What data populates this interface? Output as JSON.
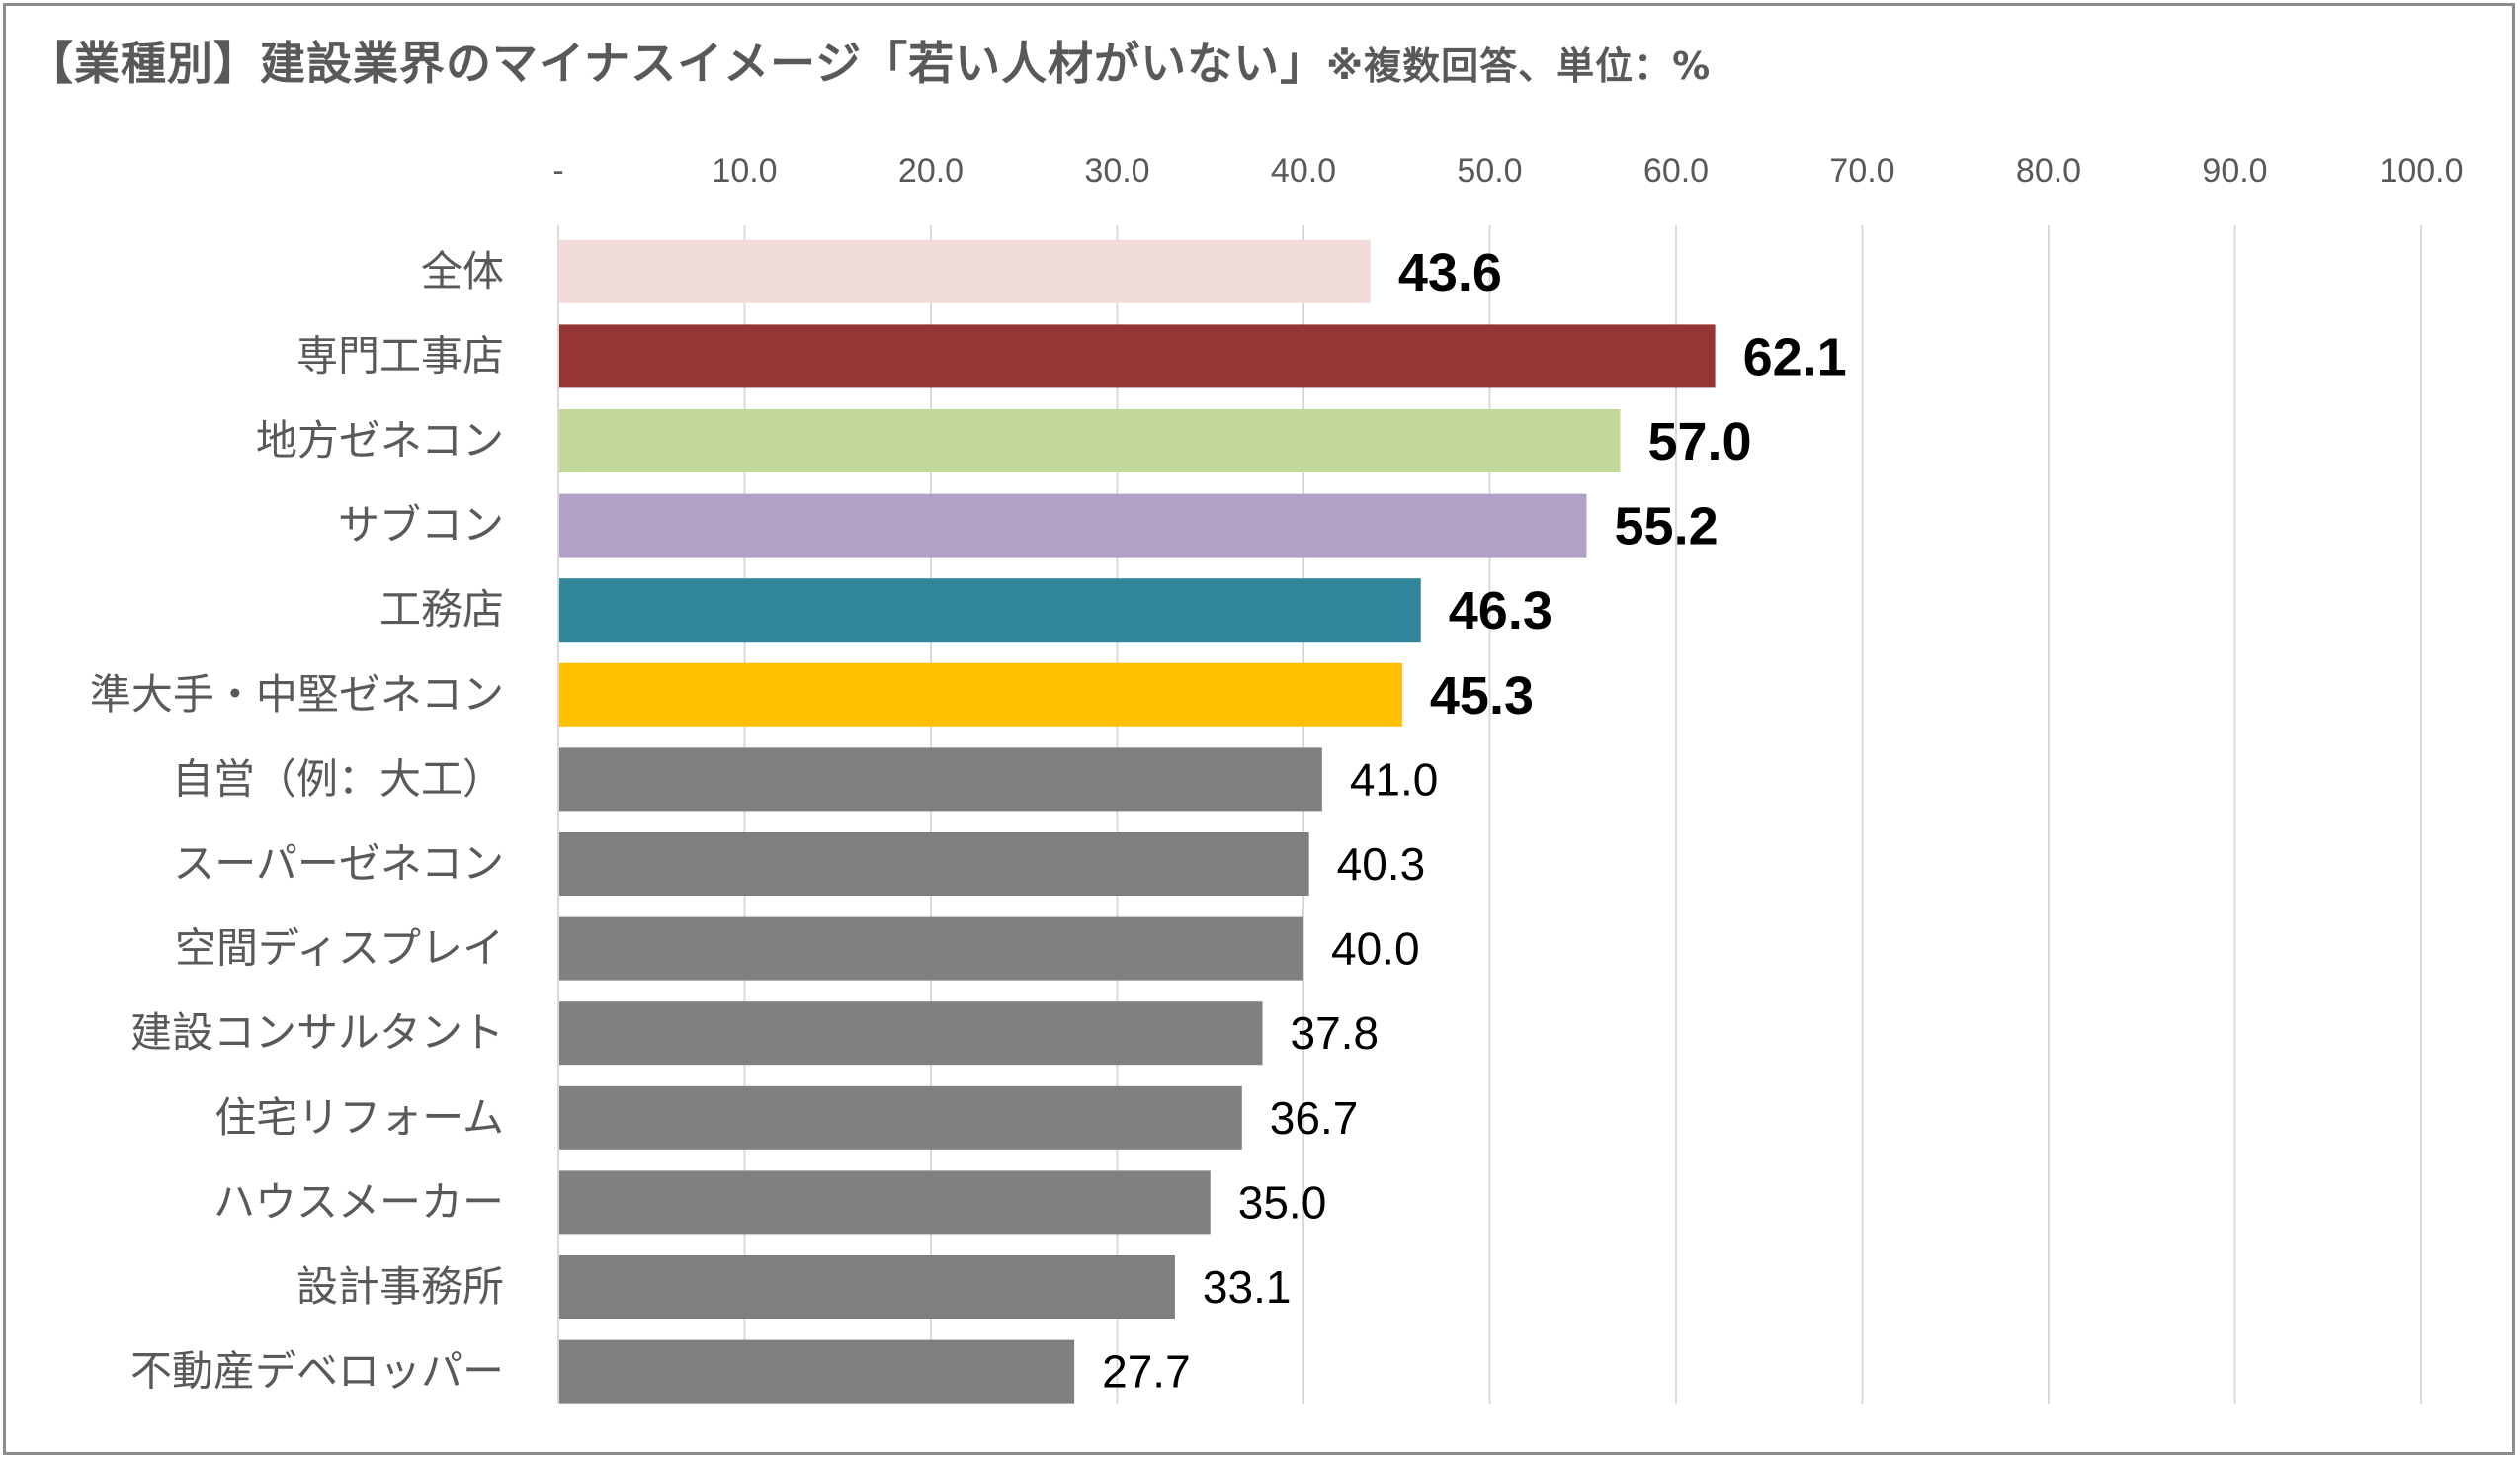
{
  "chart_data": {
    "type": "bar",
    "orientation": "horizontal",
    "title": "【業種別】建設業界のマイナスイメージ「若い人材がいない」",
    "subtitle": "※複数回答、単位：%",
    "categories": [
      "全体",
      "専門工事店",
      "地方ゼネコン",
      "サブコン",
      "工務店",
      "準大手・中堅ゼネコン",
      "自営（例：大工）",
      "スーパーゼネコン",
      "空間ディスプレイ",
      "建設コンサルタント",
      "住宅リフォーム",
      "ハウスメーカー",
      "設計事務所",
      "不動産デベロッパー"
    ],
    "values": [
      43.6,
      62.1,
      57.0,
      55.2,
      46.3,
      45.3,
      41.0,
      40.3,
      40.0,
      37.8,
      36.7,
      35.0,
      33.1,
      27.7
    ],
    "value_labels": [
      "43.6",
      "62.1",
      "57.0",
      "55.2",
      "46.3",
      "45.3",
      "41.0",
      "40.3",
      "40.0",
      "37.8",
      "36.7",
      "35.0",
      "33.1",
      "27.7"
    ],
    "highlighted": [
      true,
      true,
      true,
      true,
      true,
      true,
      false,
      false,
      false,
      false,
      false,
      false,
      false,
      false
    ],
    "colors": [
      "#f2dcdb",
      "#943634",
      "#c4d79b",
      "#b2a1c7",
      "#31869b",
      "#ffc000",
      "#808080",
      "#808080",
      "#808080",
      "#808080",
      "#808080",
      "#808080",
      "#808080",
      "#808080"
    ],
    "xlim": [
      0,
      100
    ],
    "xticks": [
      0,
      10,
      20,
      30,
      40,
      50,
      60,
      70,
      80,
      90,
      100
    ],
    "xtick_labels": [
      "-",
      "10.0",
      "20.0",
      "30.0",
      "40.0",
      "50.0",
      "60.0",
      "70.0",
      "80.0",
      "90.0",
      "100.0"
    ],
    "x_axis_position": "top",
    "grid": true,
    "legend": "none"
  }
}
